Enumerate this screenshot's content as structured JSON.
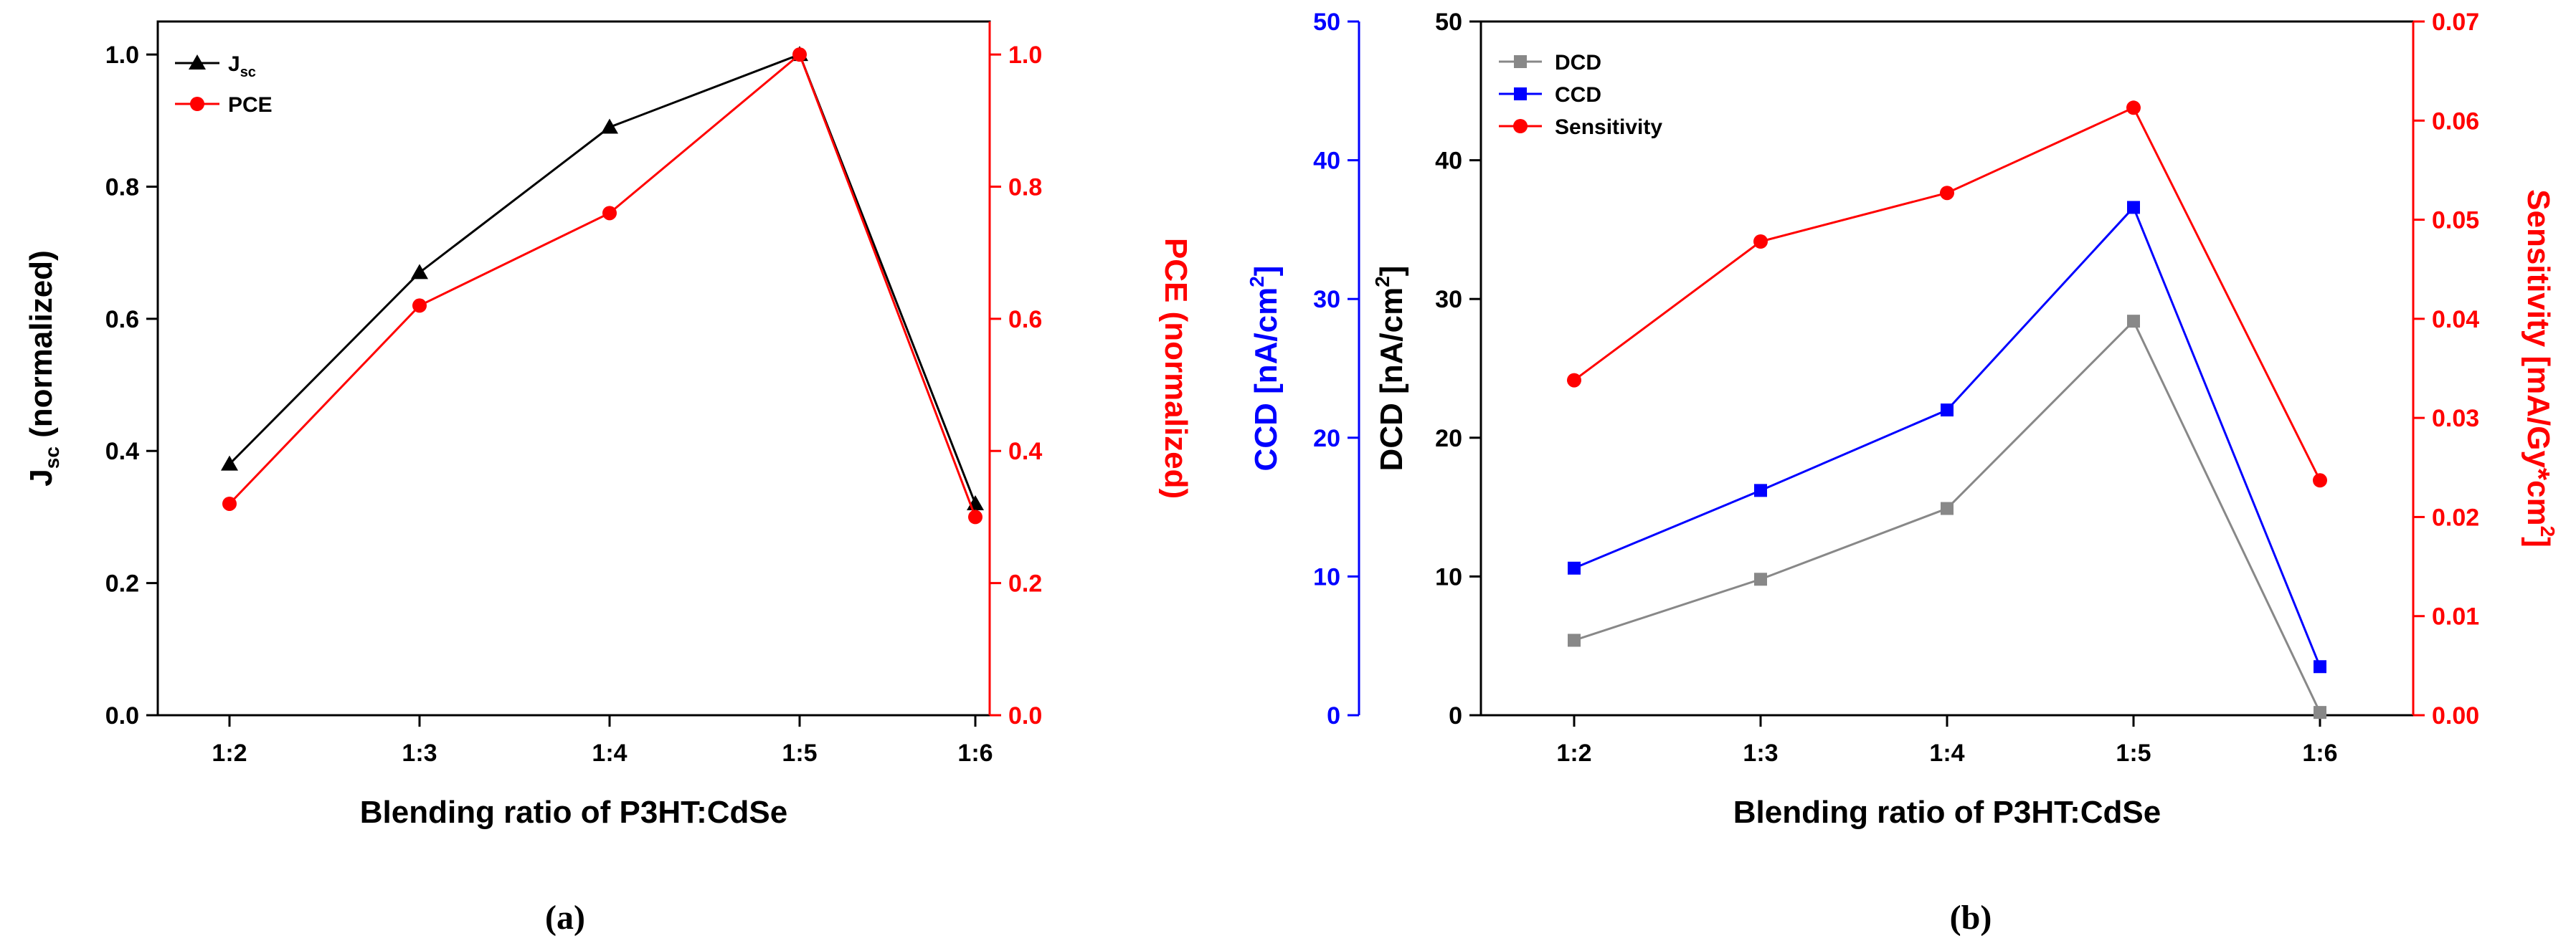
{
  "chart_data": [
    {
      "panel": "a",
      "type": "line",
      "caption": "(a)",
      "categories": [
        "1:2",
        "1:3",
        "1:4",
        "1:5",
        "1:6"
      ],
      "xlabel": "Blending ratio of P3HT:CdSe",
      "y_left": {
        "label_main": "J",
        "label_sub": "sc",
        "label_rest": " (normalized)",
        "lim": [
          0,
          1.05
        ],
        "ticks": [
          "0.0",
          "0.2",
          "0.4",
          "0.6",
          "0.8",
          "1.0"
        ],
        "color": "#000000"
      },
      "y_right": {
        "label": "PCE  (normalized)",
        "lim": [
          0,
          1.05
        ],
        "ticks": [
          "0.0",
          "0.2",
          "0.4",
          "0.6",
          "0.8",
          "1.0"
        ],
        "color": "#ff0000"
      },
      "series": [
        {
          "name": "J",
          "name_sub": "sc",
          "axis": "left",
          "color": "#000000",
          "marker": "triangle",
          "values": [
            0.38,
            0.67,
            0.89,
            1.0,
            0.32
          ]
        },
        {
          "name": "PCE",
          "axis": "right",
          "color": "#ff0000",
          "marker": "circle",
          "values": [
            0.32,
            0.62,
            0.76,
            1.0,
            0.3
          ]
        }
      ]
    },
    {
      "panel": "b",
      "type": "line",
      "caption": "(b)",
      "categories": [
        "1:2",
        "1:3",
        "1:4",
        "1:5",
        "1:6"
      ],
      "xlabel": "Blending ratio of P3HT:CdSe",
      "y_ccd": {
        "label_main": "CCD [nA/cm",
        "label_sup": "2",
        "label_end": "]",
        "lim": [
          0,
          50
        ],
        "ticks": [
          "0",
          "10",
          "20",
          "30",
          "40",
          "50"
        ],
        "color": "#0000ff"
      },
      "y_left": {
        "label_main": "DCD [nA/cm",
        "label_sup": "2",
        "label_end": "]",
        "lim": [
          0,
          50
        ],
        "ticks": [
          "0",
          "10",
          "20",
          "30",
          "40",
          "50"
        ],
        "color": "#000000"
      },
      "y_right": {
        "label_main": "Sensitivity [mA/Gy*cm",
        "label_sup": "2",
        "label_end": "]",
        "lim": [
          0,
          0.07
        ],
        "ticks": [
          "0.00",
          "0.01",
          "0.02",
          "0.03",
          "0.04",
          "0.05",
          "0.06",
          "0.07"
        ],
        "color": "#ff0000"
      },
      "series": [
        {
          "name": "DCD",
          "axis": "left",
          "color": "#888888",
          "marker": "square",
          "values": [
            5.4,
            9.8,
            14.9,
            28.4,
            0.2
          ]
        },
        {
          "name": "CCD",
          "axis": "left",
          "color": "#0000ff",
          "marker": "square",
          "values": [
            10.6,
            16.2,
            22.0,
            36.6,
            3.5
          ]
        },
        {
          "name": "Sensitivity",
          "axis": "right",
          "color": "#ff0000",
          "marker": "circle",
          "values": [
            0.0338,
            0.0478,
            0.0527,
            0.0613,
            0.0237
          ]
        }
      ]
    }
  ]
}
